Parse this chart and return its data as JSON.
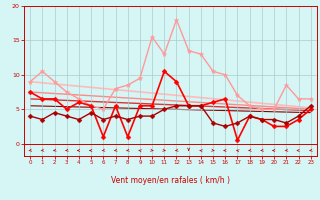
{
  "bg_color": "#d6f5f5",
  "grid_color": "#aacccc",
  "text_color": "#cc0000",
  "xlabel": "Vent moyen/en rafales ( km/h )",
  "xlim": [
    -0.5,
    23.5
  ],
  "ylim": [
    0,
    20
  ],
  "xtick_vals": [
    0,
    1,
    2,
    3,
    4,
    5,
    6,
    7,
    8,
    9,
    10,
    11,
    12,
    13,
    14,
    15,
    16,
    17,
    18,
    19,
    20,
    21,
    22,
    23
  ],
  "ytick_vals": [
    0,
    5,
    10,
    15,
    20
  ],
  "series_light_pink": {
    "x": [
      0,
      1,
      2,
      3,
      4,
      5,
      6,
      7,
      8,
      9,
      10,
      11,
      12,
      13,
      14,
      15,
      16,
      17,
      18,
      19,
      20,
      21,
      22,
      23
    ],
    "y": [
      9.0,
      10.5,
      9.0,
      7.5,
      6.5,
      5.5,
      5.0,
      8.0,
      8.5,
      9.5,
      15.5,
      13.0,
      18.0,
      13.5,
      13.0,
      10.5,
      10.0,
      7.0,
      5.5,
      5.0,
      5.0,
      8.5,
      6.5,
      6.5
    ],
    "color": "#ff9999",
    "lw": 1.0,
    "marker": "*",
    "ms": 3.5
  },
  "series_bright_red": {
    "x": [
      0,
      1,
      2,
      3,
      4,
      5,
      6,
      7,
      8,
      9,
      10,
      11,
      12,
      13,
      14,
      15,
      16,
      17,
      18,
      19,
      20,
      21,
      22,
      23
    ],
    "y": [
      7.5,
      6.5,
      6.5,
      5.0,
      6.0,
      5.5,
      1.0,
      5.5,
      1.0,
      5.5,
      5.5,
      10.5,
      9.0,
      5.5,
      5.5,
      6.0,
      6.5,
      0.5,
      4.0,
      3.5,
      2.5,
      2.5,
      3.5,
      5.0
    ],
    "color": "#ff0000",
    "lw": 1.2,
    "marker": "D",
    "ms": 2.5
  },
  "series_dark_red": {
    "x": [
      0,
      1,
      2,
      3,
      4,
      5,
      6,
      7,
      8,
      9,
      10,
      11,
      12,
      13,
      14,
      15,
      16,
      17,
      18,
      19,
      20,
      21,
      22,
      23
    ],
    "y": [
      4.0,
      3.5,
      4.5,
      4.0,
      3.5,
      4.5,
      3.5,
      4.0,
      3.5,
      4.0,
      4.0,
      5.0,
      5.5,
      5.5,
      5.5,
      3.0,
      2.5,
      3.0,
      4.0,
      3.5,
      3.5,
      3.0,
      4.0,
      5.5
    ],
    "color": "#aa0000",
    "lw": 1.0,
    "marker": "D",
    "ms": 2.5
  },
  "trend_lines": [
    {
      "x": [
        0,
        23
      ],
      "y": [
        9.0,
        5.2
      ],
      "color": "#ffbbbb",
      "lw": 1.2
    },
    {
      "x": [
        0,
        23
      ],
      "y": [
        7.5,
        5.0
      ],
      "color": "#ff8888",
      "lw": 1.0
    },
    {
      "x": [
        0,
        23
      ],
      "y": [
        6.5,
        4.8
      ],
      "color": "#dd3333",
      "lw": 1.0
    },
    {
      "x": [
        0,
        23
      ],
      "y": [
        5.5,
        4.5
      ],
      "color": "#880000",
      "lw": 0.8
    }
  ],
  "wind_dirs": [
    225,
    225,
    225,
    225,
    270,
    270,
    225,
    225,
    225,
    315,
    135,
    135,
    225,
    180,
    315,
    135,
    270,
    315,
    225,
    225,
    270,
    225,
    270,
    225
  ]
}
